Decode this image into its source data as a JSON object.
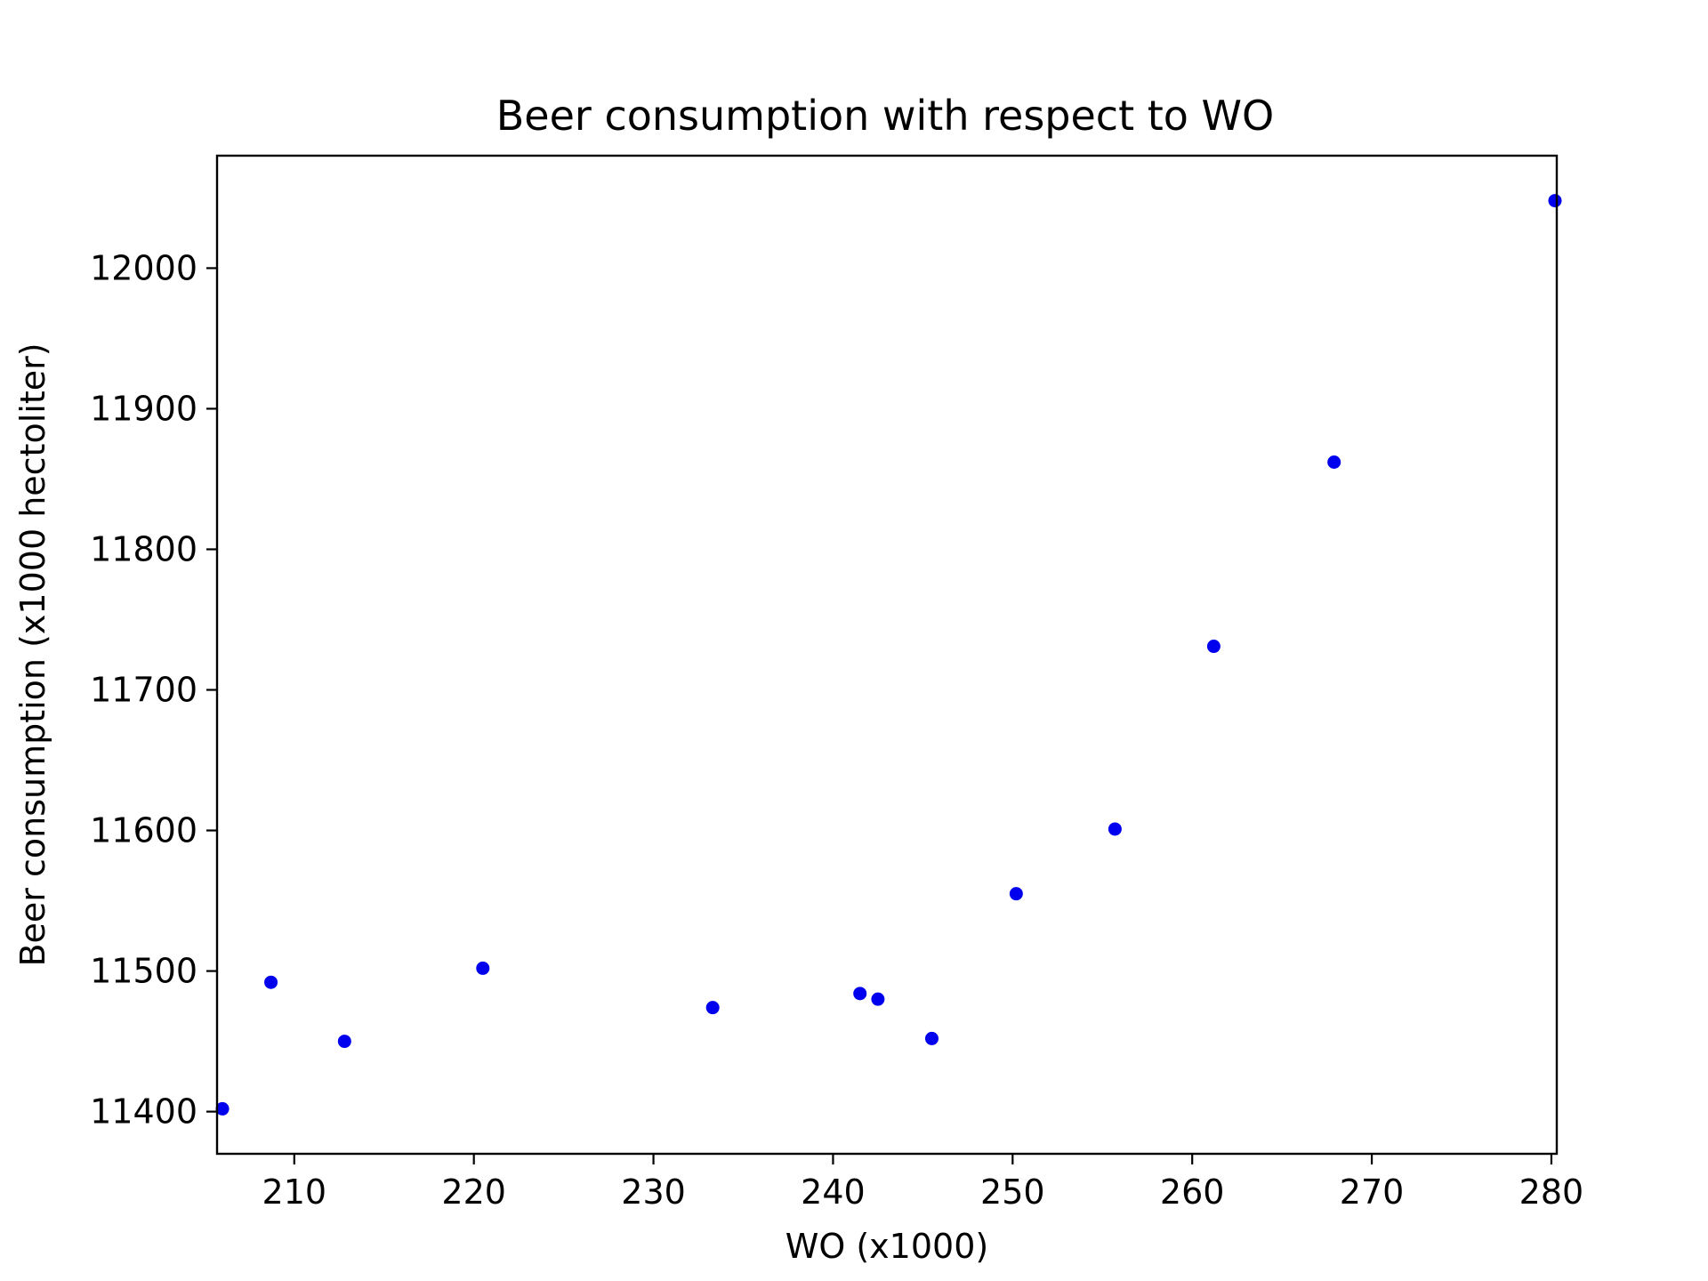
{
  "chart_data": {
    "type": "scatter",
    "title": "Beer consumption with respect to WO",
    "xlabel": "WO (x1000)",
    "ylabel": "Beer consumption (x1000 hectoliter)",
    "xlim": [
      205.7,
      280.3
    ],
    "ylim": [
      11370,
      12080
    ],
    "xticks": [
      210,
      220,
      230,
      240,
      250,
      260,
      270,
      280
    ],
    "yticks": [
      11400,
      11500,
      11600,
      11700,
      11800,
      11900,
      12000
    ],
    "grid": false,
    "legend": "none",
    "marker_color": "#0000ee",
    "points": [
      {
        "x": 206.0,
        "y": 11402
      },
      {
        "x": 208.7,
        "y": 11492
      },
      {
        "x": 212.8,
        "y": 11450
      },
      {
        "x": 220.5,
        "y": 11502
      },
      {
        "x": 233.3,
        "y": 11474
      },
      {
        "x": 241.5,
        "y": 11484
      },
      {
        "x": 242.5,
        "y": 11480
      },
      {
        "x": 245.5,
        "y": 11452
      },
      {
        "x": 250.2,
        "y": 11555
      },
      {
        "x": 255.7,
        "y": 11601
      },
      {
        "x": 261.2,
        "y": 11731
      },
      {
        "x": 267.9,
        "y": 11862
      },
      {
        "x": 280.2,
        "y": 12048
      }
    ]
  }
}
